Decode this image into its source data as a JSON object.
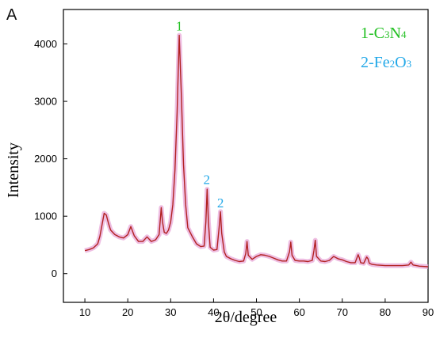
{
  "panel_label": "A",
  "chart_data": {
    "type": "line",
    "xlabel": "2θ/degree",
    "ylabel": "Intensity",
    "xlim": [
      5,
      90
    ],
    "ylim": [
      -500,
      4600
    ],
    "xticks": [
      10,
      20,
      30,
      40,
      50,
      60,
      70,
      80,
      90
    ],
    "yticks": [
      0,
      1000,
      2000,
      3000,
      4000
    ],
    "grid": false,
    "legend_position": "top-right",
    "line_color": "#b22222",
    "shadow_color": "#e8a8d8",
    "legend": [
      {
        "prefix": "1-C",
        "sub1": "3",
        "mid": "N",
        "sub2": "4",
        "color": "#22c022"
      },
      {
        "prefix": "2-Fe",
        "sub1": "2",
        "mid": "O",
        "sub2": "3",
        "color": "#22a8e8"
      }
    ],
    "peak_annotations": [
      {
        "text": "1",
        "x": 32.0,
        "y": 4150,
        "color": "#22c022"
      },
      {
        "text": "2",
        "x": 38.4,
        "y": 1480,
        "color": "#22a8e8"
      },
      {
        "text": "2",
        "x": 41.6,
        "y": 1070,
        "color": "#22a8e8"
      }
    ],
    "series": [
      {
        "x": [
          10,
          11,
          12,
          13,
          13.5,
          14,
          14.5,
          15,
          15.5,
          16,
          17,
          18,
          19,
          20,
          20.7,
          21.5,
          22.5,
          23.5,
          24.5,
          25.5,
          26.5,
          27.3,
          27.8,
          28.1,
          28.5,
          29,
          29.5,
          30,
          30.5,
          31,
          31.5,
          32.0,
          32.5,
          33,
          33.5,
          34,
          35,
          36,
          37,
          37.8,
          38.2,
          38.5,
          38.8,
          39.2,
          40,
          40.8,
          41.3,
          41.6,
          41.9,
          42.5,
          43,
          44,
          45,
          46,
          47,
          47.5,
          47.8,
          48.1,
          49,
          50,
          51,
          52,
          53,
          54,
          55,
          56,
          57,
          57.7,
          58,
          58.3,
          59,
          60,
          61,
          62,
          63,
          63.4,
          63.7,
          64,
          65,
          66,
          67,
          68,
          69,
          70,
          71,
          72,
          73,
          73.7,
          74,
          74.3,
          75,
          75.7,
          76,
          76.3,
          77,
          78,
          80,
          82,
          84,
          85.5,
          86,
          86.5,
          88,
          90
        ],
        "y": [
          400,
          420,
          450,
          520,
          650,
          850,
          1050,
          1020,
          880,
          760,
          680,
          640,
          620,
          680,
          820,
          660,
          560,
          560,
          640,
          560,
          590,
          680,
          1150,
          900,
          720,
          700,
          760,
          900,
          1200,
          1800,
          2800,
          4150,
          3100,
          1900,
          1200,
          800,
          650,
          520,
          470,
          480,
          900,
          1470,
          900,
          460,
          410,
          420,
          800,
          1080,
          700,
          380,
          300,
          260,
          230,
          210,
          220,
          350,
          560,
          320,
          250,
          300,
          330,
          320,
          300,
          270,
          240,
          220,
          220,
          380,
          550,
          320,
          230,
          220,
          220,
          210,
          230,
          400,
          580,
          300,
          220,
          210,
          230,
          300,
          260,
          240,
          210,
          190,
          190,
          330,
          270,
          190,
          180,
          290,
          260,
          180,
          160,
          150,
          140,
          140,
          140,
          150,
          200,
          150,
          130,
          120
        ]
      }
    ]
  }
}
